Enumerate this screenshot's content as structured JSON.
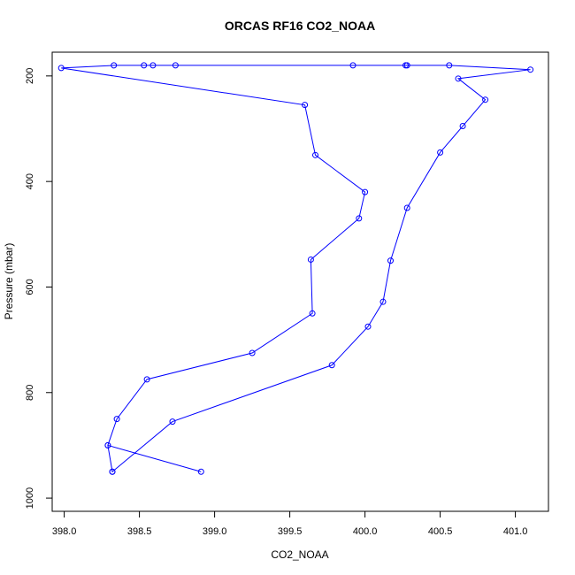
{
  "chart_data": {
    "type": "line",
    "title": "ORCAS RF16 CO2_NOAA",
    "xlabel": "CO2_NOAA",
    "ylabel": "Pressure (mbar)",
    "xlim": [
      397.92,
      401.22
    ],
    "ylim": [
      1025,
      155
    ],
    "y_reversed": true,
    "x_ticks": [
      398.0,
      398.5,
      399.0,
      399.5,
      400.0,
      400.5,
      401.0
    ],
    "x_tick_labels": [
      "398.0",
      "398.5",
      "399.0",
      "399.5",
      "400.0",
      "400.5",
      "401.0"
    ],
    "y_ticks": [
      200,
      400,
      600,
      800,
      1000
    ],
    "y_tick_labels": [
      "200",
      "400",
      "600",
      "800",
      "1000"
    ],
    "grid": false,
    "legend": "none",
    "series_color": "#0000ff",
    "series": [
      {
        "x": [
          398.91,
          398.29,
          398.32,
          398.72,
          399.78,
          400.02,
          400.12,
          400.17,
          400.28,
          400.5,
          400.65,
          400.8,
          400.62,
          401.1,
          400.56,
          400.27,
          400.28,
          399.92,
          398.74,
          398.59,
          398.53,
          398.33,
          397.98,
          399.6,
          399.67,
          400.0,
          399.96,
          399.64,
          399.65,
          399.25,
          398.55,
          398.35,
          398.29,
          398.32
        ],
        "y": [
          950,
          900,
          950,
          855,
          748,
          675,
          628,
          550,
          450,
          345,
          295,
          245,
          205,
          188,
          180,
          180,
          180,
          180,
          180,
          180,
          180,
          180,
          185,
          255,
          350,
          420,
          470,
          548,
          650,
          725,
          775,
          850,
          900,
          950
        ]
      }
    ]
  }
}
